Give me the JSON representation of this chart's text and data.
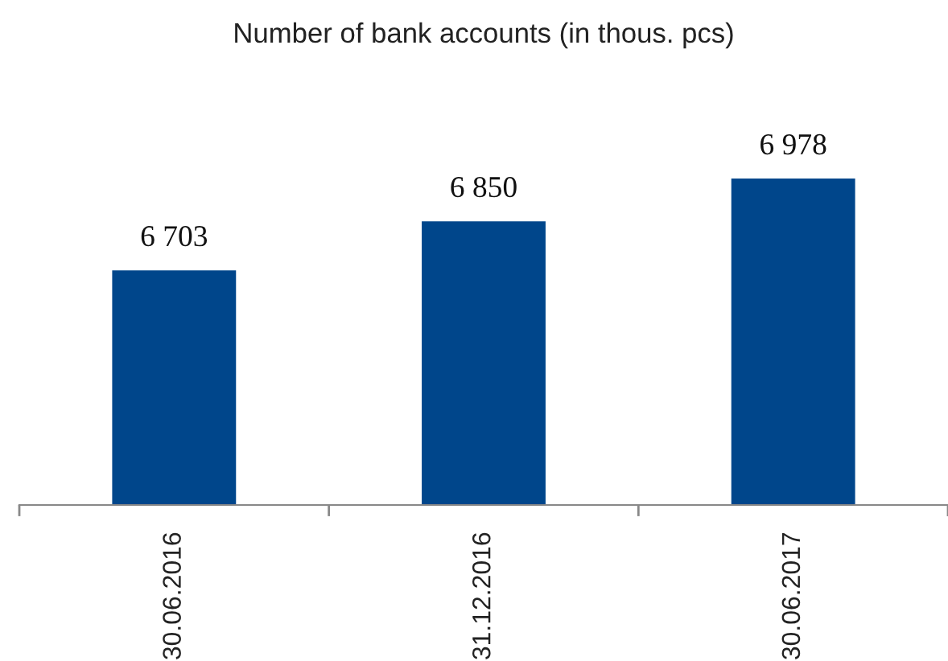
{
  "chart_data": {
    "type": "bar",
    "title": "Number of bank accounts (in thous. pcs)",
    "categories": [
      "30.06.2016",
      "31.12.2016",
      "30.06.2017"
    ],
    "values": [
      6703,
      6850,
      6978
    ],
    "color": "#00468b",
    "value_labels": [
      "6 703",
      "6 850",
      "6 978"
    ],
    "ylim": [
      6000,
      6978
    ],
    "tick_labels": "x"
  }
}
